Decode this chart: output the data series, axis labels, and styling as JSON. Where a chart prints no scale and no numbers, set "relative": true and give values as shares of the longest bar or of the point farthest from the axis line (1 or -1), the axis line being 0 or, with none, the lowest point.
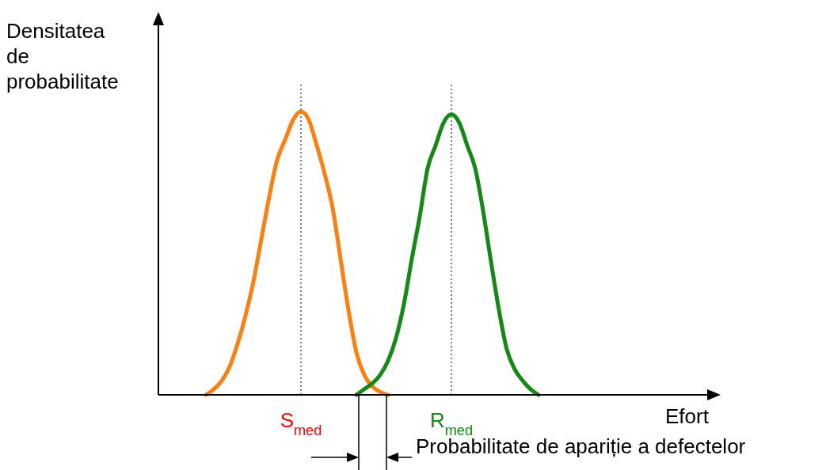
{
  "chart_data": {
    "type": "line",
    "relative": true,
    "xlabel": "Efort",
    "ylabel": "Densitatea de probabilitate",
    "categories": [
      null,
      null,
      null,
      null,
      null,
      null,
      null,
      null,
      null,
      null,
      null,
      null,
      null,
      null,
      null,
      null,
      null,
      null,
      null,
      null,
      null,
      null,
      null,
      null,
      null,
      null,
      null,
      null,
      null,
      null,
      null,
      null,
      null,
      null,
      null,
      null,
      null,
      null,
      null,
      null,
      null,
      null,
      null,
      null,
      null,
      null,
      null,
      null,
      null,
      null,
      null,
      null,
      null,
      null,
      null,
      null,
      null,
      null,
      null,
      null,
      null,
      null,
      null,
      null,
      null,
      null,
      null,
      null,
      null,
      null,
      null
    ],
    "series": [
      {
        "color": "#ff7f0e",
        "values": [
          null,
          null,
          null,
          null,
          null,
          null,
          0,
          0.02,
          0.05,
          0.1,
          0.18,
          0.28,
          0.4,
          0.55,
          0.7,
          0.83,
          0.9,
          0.97,
          1,
          0.97,
          0.88,
          0.78,
          0.66,
          0.48,
          0.3,
          0.15,
          0.07,
          0.03,
          0.01,
          0,
          null,
          null,
          null,
          null,
          null,
          null,
          null,
          null,
          null,
          null,
          null,
          null,
          null,
          null,
          null,
          null,
          null,
          null,
          null,
          null,
          null,
          null,
          null,
          null,
          null,
          null,
          null,
          null,
          null,
          null,
          null,
          null,
          null,
          null,
          null,
          null,
          null,
          null,
          null,
          null,
          null
        ]
      },
      {
        "color": "#138a13",
        "values": [
          null,
          null,
          null,
          null,
          null,
          null,
          null,
          null,
          null,
          null,
          null,
          null,
          null,
          null,
          null,
          null,
          null,
          null,
          null,
          null,
          null,
          null,
          null,
          null,
          null,
          0,
          0.02,
          0.04,
          0.07,
          0.12,
          0.2,
          0.32,
          0.48,
          0.63,
          0.8,
          0.88,
          0.96,
          0.99,
          0.96,
          0.88,
          0.8,
          0.65,
          0.47,
          0.3,
          0.16,
          0.09,
          0.05,
          0.02,
          0,
          null,
          null,
          null,
          null,
          null,
          null,
          null,
          null,
          null,
          null,
          null,
          null,
          null,
          null,
          null,
          null,
          null,
          null,
          null,
          null,
          null,
          null
        ]
      }
    ],
    "annotations": [
      "S$_{med}$",
      "R$_{med}$",
      "Probabilitate de apariție a defectelor"
    ],
    "grid": false,
    "legend": false,
    "line_style": "solid",
    "marker": "none"
  }
}
